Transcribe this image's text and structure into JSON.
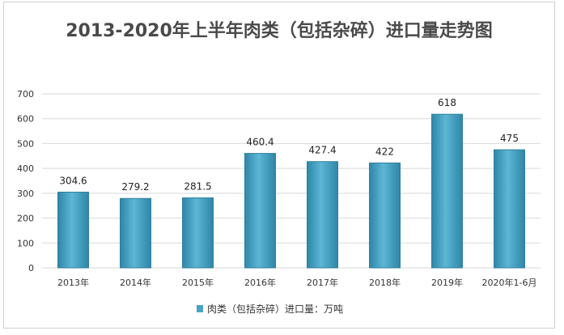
{
  "chart_data": {
    "type": "bar",
    "title": "2013-2020年上半年肉类（包括杂碎）进口量走势图",
    "categories": [
      "2013年",
      "2014年",
      "2015年",
      "2016年",
      "2017年",
      "2018年",
      "2019年",
      "2020年1-6月"
    ],
    "series": [
      {
        "name": "肉类（包括杂碎）进口量：万吨",
        "values": [
          304.6,
          279.2,
          281.5,
          460.4,
          427.4,
          422,
          618,
          475
        ],
        "labels": [
          "304.6",
          "279.2",
          "281.5",
          "460.4",
          "427.4",
          "422",
          "618",
          "475"
        ]
      }
    ],
    "yticks": [
      "0",
      "100",
      "200",
      "300",
      "400",
      "500",
      "600",
      "700"
    ],
    "ylim": [
      0,
      700
    ],
    "grid": true,
    "legend": "bottom",
    "colors": {
      "bar": "#4aa3c4",
      "bar_edge": "#2f7f9e",
      "grid": "#d9d9d9"
    }
  }
}
